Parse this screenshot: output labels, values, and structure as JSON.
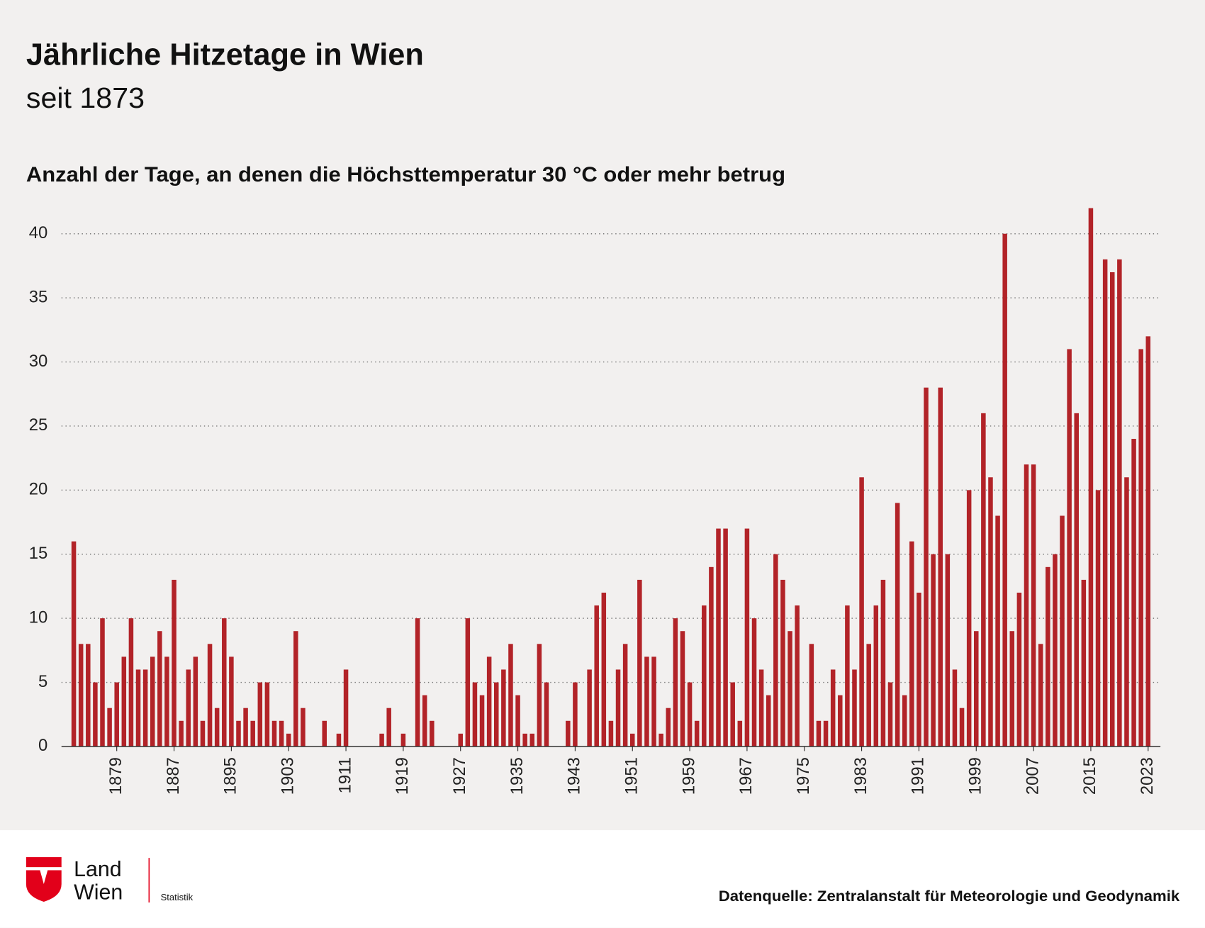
{
  "chart_data": {
    "type": "bar",
    "title": "Jährliche Hitzetage in Wien",
    "subtitle": "seit 1873",
    "y_axis_title": "Anzahl der Tage, an denen die Höchsttemperatur 30 °C oder mehr betrug",
    "source": "Datenquelle: Zentralanstalt für Meteorologie und Geodynamik",
    "logo_text": [
      "Land",
      "Wien"
    ],
    "logo_subtext": "Statistik",
    "color": "#b22328",
    "grid": true,
    "ylim": [
      0,
      42
    ],
    "yticks": [
      0,
      5,
      10,
      15,
      20,
      25,
      30,
      35,
      40
    ],
    "categories": [
      null,
      null,
      null,
      null,
      null,
      null,
      "1879",
      null,
      null,
      null,
      null,
      null,
      null,
      null,
      "1887",
      null,
      null,
      null,
      null,
      null,
      null,
      null,
      "1895",
      null,
      null,
      null,
      null,
      null,
      null,
      null,
      "1903",
      null,
      null,
      null,
      null,
      null,
      null,
      null,
      "1911",
      null,
      null,
      null,
      null,
      null,
      null,
      null,
      "1919",
      null,
      null,
      null,
      null,
      null,
      null,
      null,
      "1927",
      null,
      null,
      null,
      null,
      null,
      null,
      null,
      "1935",
      null,
      null,
      null,
      null,
      null,
      null,
      null,
      "1943",
      null,
      null,
      null,
      null,
      null,
      null,
      null,
      "1951",
      null,
      null,
      null,
      null,
      null,
      null,
      null,
      "1959",
      null,
      null,
      null,
      null,
      null,
      null,
      null,
      "1967",
      null,
      null,
      null,
      null,
      null,
      null,
      null,
      "1975",
      null,
      null,
      null,
      null,
      null,
      null,
      null,
      "1983",
      null,
      null,
      null,
      null,
      null,
      null,
      null,
      "1991",
      null,
      null,
      null,
      null,
      null,
      null,
      null,
      "1999",
      null,
      null,
      null,
      null,
      null,
      null,
      null,
      "2007",
      null,
      null,
      null,
      null,
      null,
      null,
      null,
      "2015",
      null,
      null,
      null,
      null,
      null,
      null,
      null,
      "2023"
    ],
    "values": [
      16,
      8,
      8,
      5,
      10,
      3,
      5,
      7,
      10,
      6,
      6,
      7,
      9,
      7,
      13,
      2,
      6,
      7,
      2,
      8,
      3,
      10,
      7,
      2,
      3,
      2,
      5,
      5,
      2,
      2,
      1,
      9,
      3,
      0,
      0,
      2,
      0,
      1,
      6,
      0,
      0,
      0,
      0,
      1,
      3,
      0,
      1,
      0,
      10,
      4,
      2,
      0,
      0,
      0,
      1,
      10,
      5,
      4,
      7,
      5,
      6,
      8,
      4,
      1,
      1,
      8,
      5,
      0,
      0,
      2,
      5,
      0,
      6,
      11,
      12,
      2,
      6,
      8,
      1,
      13,
      7,
      7,
      1,
      3,
      10,
      9,
      5,
      2,
      11,
      14,
      17,
      17,
      5,
      2,
      17,
      10,
      6,
      4,
      15,
      13,
      9,
      11,
      0,
      8,
      2,
      2,
      6,
      4,
      11,
      6,
      21,
      8,
      11,
      13,
      5,
      19,
      4,
      16,
      12,
      28,
      15,
      28,
      15,
      6,
      3,
      20,
      9,
      26,
      21,
      18,
      40,
      9,
      12,
      22,
      22,
      8,
      14,
      15,
      18,
      31,
      26,
      13,
      42,
      20,
      38,
      37,
      38,
      21,
      24,
      31,
      32
    ]
  }
}
